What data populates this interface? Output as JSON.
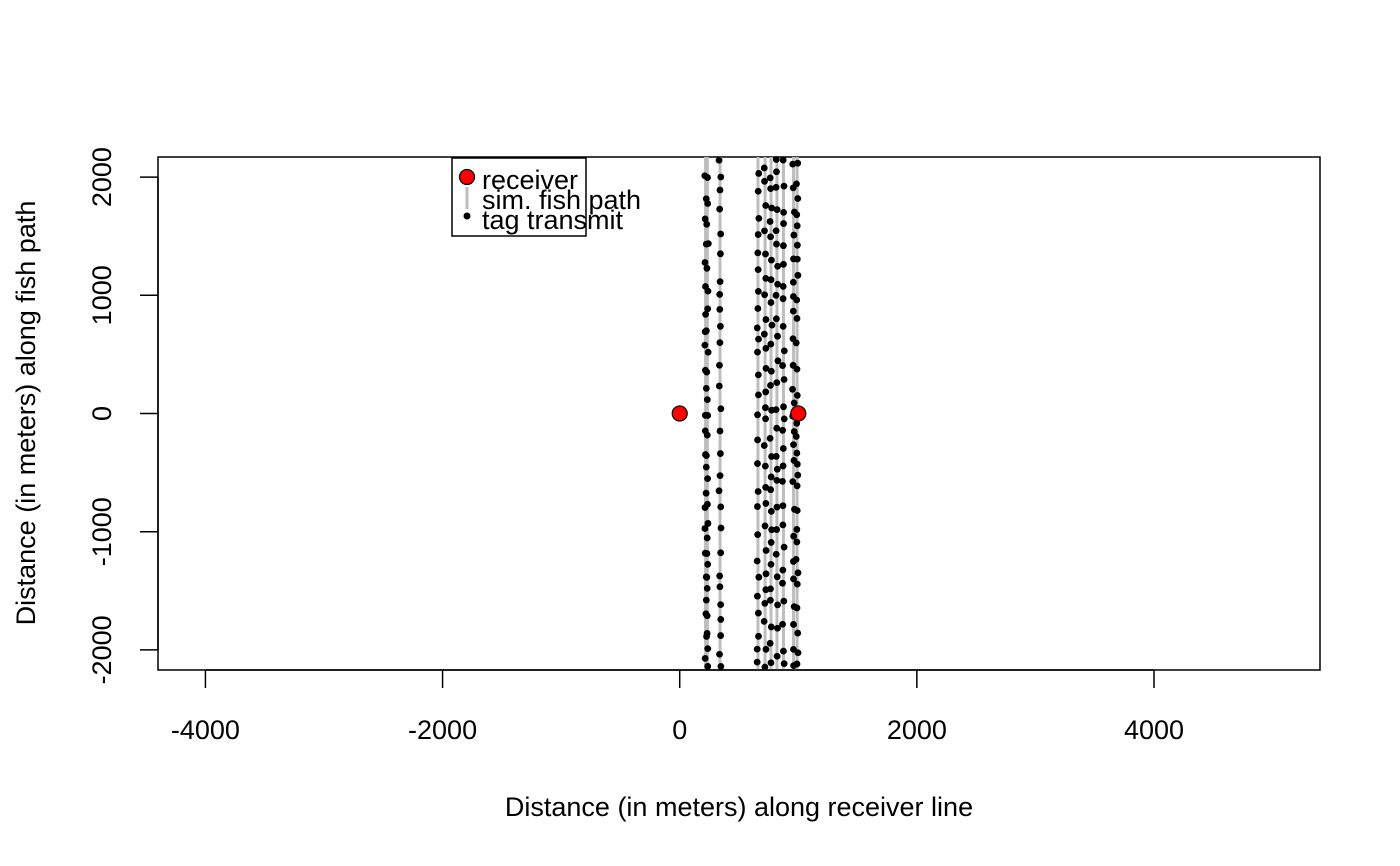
{
  "chart_data": {
    "type": "scatter",
    "xlabel": "Distance (in meters) along receiver line",
    "ylabel": "Distance (in meters) along fish path",
    "xlim": [
      -4400,
      5400
    ],
    "ylim": [
      -2170,
      2170
    ],
    "x_ticks": [
      -4000,
      -2000,
      0,
      2000,
      4000
    ],
    "y_ticks": [
      -2000,
      -1000,
      0,
      1000,
      2000
    ],
    "grid": false,
    "legend": {
      "position": "top-left",
      "entries": [
        {
          "label": "receiver",
          "marker": "filled-circle",
          "color": "#ff0000"
        },
        {
          "label": "sim. fish path",
          "marker": "line",
          "color": "#bebebe"
        },
        {
          "label": "tag transmit",
          "marker": "dot",
          "color": "#000000"
        }
      ]
    },
    "receivers": [
      {
        "x": 0,
        "y": 0
      },
      {
        "x": 1000,
        "y": 0
      }
    ],
    "fish_paths_x": [
      218,
      233,
      340,
      660,
      720,
      770,
      820,
      875,
      960,
      990
    ],
    "tag_transmit_y_range": [
      -2150,
      2150
    ],
    "colors": {
      "receiver": "#ff0000",
      "fish_path": "#bebebe",
      "transmit": "#000000"
    }
  }
}
